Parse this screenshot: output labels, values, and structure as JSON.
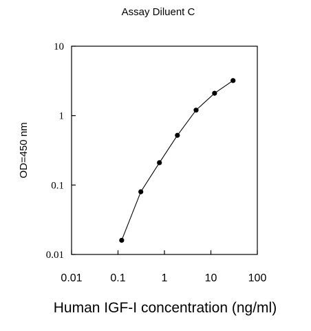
{
  "chart_data": {
    "type": "line",
    "title": "Assay Diluent C",
    "xlabel": "Human IGF-I concentration (ng/ml)",
    "ylabel": "OD=450 nm",
    "x_scale": "log",
    "y_scale": "log",
    "xlim": [
      0.01,
      100
    ],
    "ylim": [
      0.01,
      10
    ],
    "x_ticks": [
      "0.01",
      "0.1",
      "1",
      "10",
      "100"
    ],
    "y_ticks": [
      "0.01",
      "0.1",
      "1",
      "10"
    ],
    "grid": false,
    "series": [
      {
        "x": [
          0.12,
          0.31,
          0.78,
          1.9,
          4.8,
          12,
          30
        ],
        "y": [
          0.016,
          0.08,
          0.21,
          0.52,
          1.2,
          2.1,
          3.2
        ]
      }
    ],
    "colors": {
      "line": "#000000",
      "marker": "#000000",
      "axis": "#000000"
    }
  }
}
